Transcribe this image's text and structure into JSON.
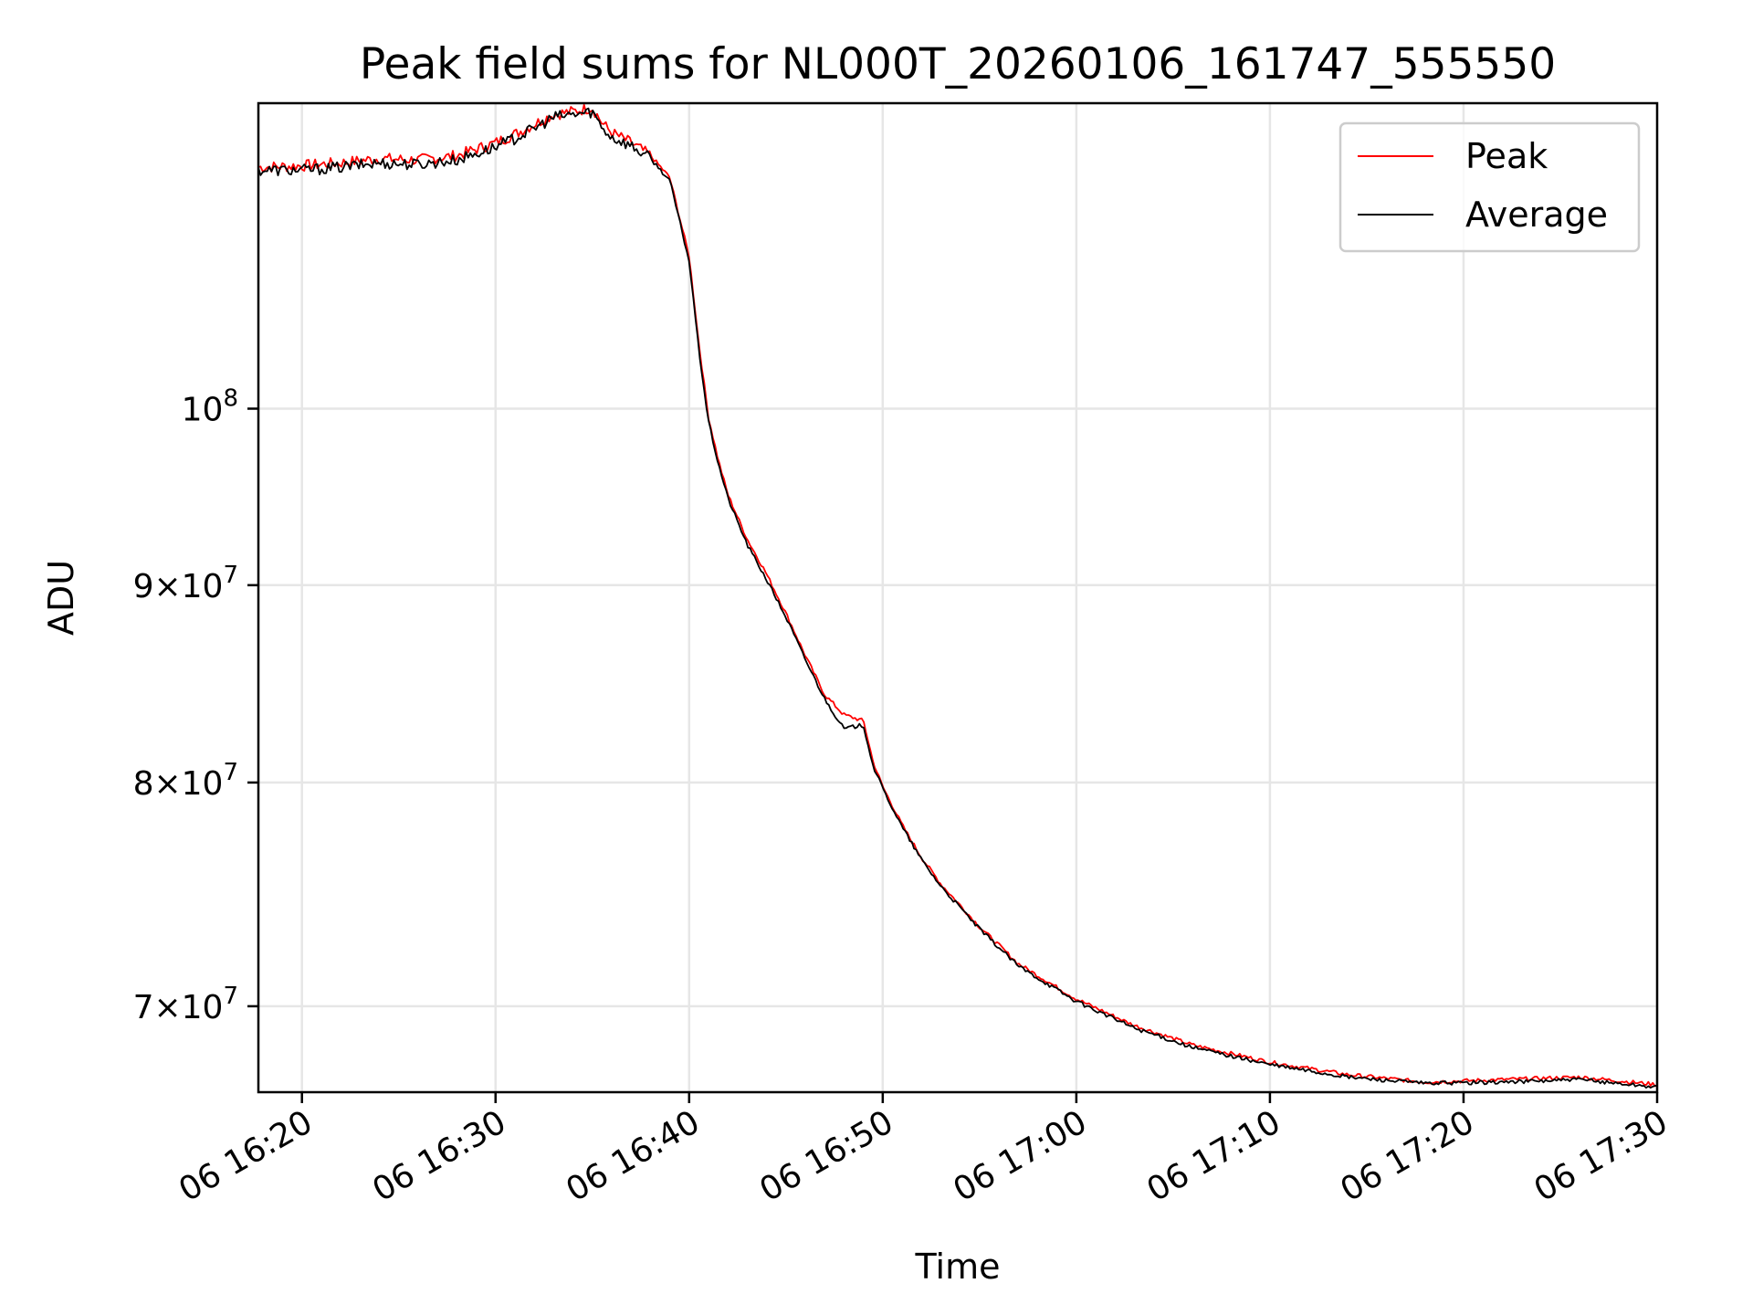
{
  "chart_data": {
    "type": "line",
    "title": "Peak field sums for NL000T_20260106_161747_555550",
    "xlabel": "Time",
    "ylabel": "ADU",
    "xlim": [
      "2026-01-06 16:17:45",
      "2026-01-06 17:30:00"
    ],
    "ylim": [
      66500000,
      120000000
    ],
    "yscale": "log",
    "x_ticks": [
      "06 16:20",
      "06 16:30",
      "06 16:40",
      "06 16:50",
      "06 17:00",
      "06 17:10",
      "06 17:20",
      "06 17:30"
    ],
    "y_ticks": [
      {
        "value": 70000000,
        "mantissa": "7",
        "exponent": "7"
      },
      {
        "value": 80000000,
        "mantissa": "8",
        "exponent": "7"
      },
      {
        "value": 90000000,
        "mantissa": "9",
        "exponent": "7"
      },
      {
        "value": 100000000,
        "mantissa": "",
        "exponent": "8"
      }
    ],
    "grid": true,
    "legend_position": "upper right",
    "x": [
      "16:17:45",
      "16:20:00",
      "16:22:00",
      "16:24:00",
      "16:26:00",
      "16:28:00",
      "16:30:00",
      "16:31:00",
      "16:32:00",
      "16:33:00",
      "16:34:00",
      "16:35:00",
      "16:35:30",
      "16:36:00",
      "16:37:00",
      "16:38:00",
      "16:39:00",
      "16:40:00",
      "16:40:30",
      "16:41:00",
      "16:41:30",
      "16:42:00",
      "16:43:00",
      "16:44:00",
      "16:45:00",
      "16:46:00",
      "16:47:00",
      "16:48:00",
      "16:49:00",
      "16:49:30",
      "16:50:00",
      "16:51:00",
      "16:52:00",
      "16:53:00",
      "16:55:00",
      "16:57:00",
      "17:00:00",
      "17:03:00",
      "17:06:00",
      "17:10:00",
      "17:14:00",
      "17:18:00",
      "17:22:00",
      "17:26:00",
      "17:30:00"
    ],
    "series": [
      {
        "name": "Peak",
        "color": "#ff0000",
        "values": [
          115500000,
          115600000,
          115800000,
          116100000,
          116000000,
          116300000,
          117200000,
          117800000,
          118500000,
          119200000,
          119400000,
          119700000,
          118600000,
          117900000,
          117200000,
          116300000,
          114800000,
          109500000,
          104000000,
          99500000,
          97000000,
          95000000,
          92500000,
          90600000,
          88500000,
          86300000,
          84300000,
          83300000,
          83000000,
          81000000,
          79800000,
          78000000,
          76500000,
          75300000,
          73400000,
          71800000,
          70300000,
          69200000,
          68400000,
          67700000,
          67200000,
          66900000,
          67000000,
          67100000,
          66800000
        ]
      },
      {
        "name": "Average",
        "color": "#000000",
        "values": [
          115300000,
          115300000,
          115500000,
          115800000,
          115700000,
          116000000,
          116900000,
          117500000,
          118200000,
          119000000,
          119200000,
          119400000,
          118300000,
          117600000,
          117000000,
          116100000,
          114600000,
          109200000,
          103600000,
          99200000,
          96800000,
          94800000,
          92200000,
          90300000,
          88300000,
          86100000,
          84100000,
          82600000,
          82800000,
          80800000,
          79700000,
          77900000,
          76400000,
          75200000,
          73300000,
          71700000,
          70200000,
          69100000,
          68300000,
          67600000,
          67100000,
          66850000,
          66900000,
          67000000,
          66700000
        ]
      }
    ]
  }
}
